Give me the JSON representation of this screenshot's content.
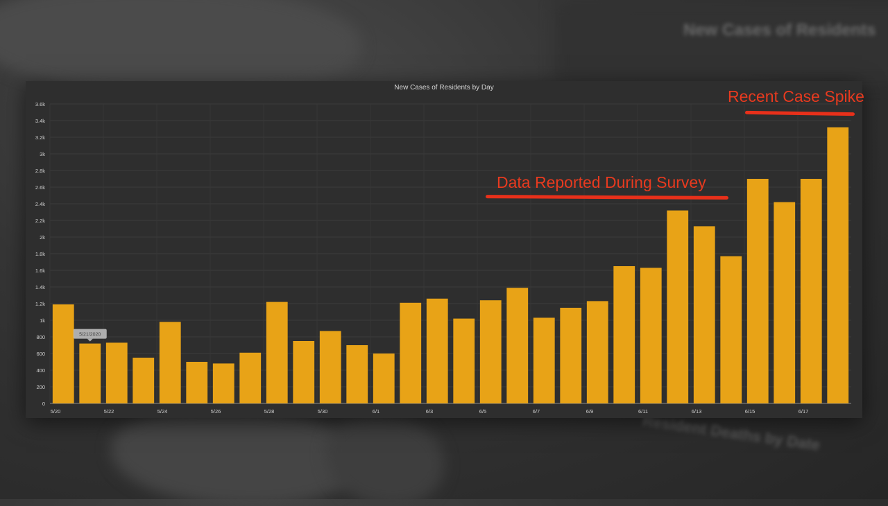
{
  "chart_data": {
    "type": "bar",
    "title": "New Cases of Residents by Day",
    "xlabel": "",
    "ylabel": "",
    "ylim": [
      0,
      3600
    ],
    "yticks": [
      0,
      200,
      400,
      600,
      800,
      1000,
      1200,
      1400,
      1600,
      1800,
      2000,
      2200,
      2400,
      2600,
      2800,
      3000,
      3200,
      3400,
      3600
    ],
    "ytick_labels": [
      "0",
      "200",
      "400",
      "600",
      "800",
      "1k",
      "1.2k",
      "1.4k",
      "1.6k",
      "1.8k",
      "2k",
      "2.2k",
      "2.4k",
      "2.6k",
      "2.8k",
      "3k",
      "3.2k",
      "3.4k",
      "3.6k"
    ],
    "categories": [
      "5/20",
      "5/21",
      "5/22",
      "5/23",
      "5/24",
      "5/25",
      "5/26",
      "5/27",
      "5/28",
      "5/29",
      "5/30",
      "5/31",
      "6/1",
      "6/2",
      "6/3",
      "6/4",
      "6/5",
      "6/6",
      "6/7",
      "6/8",
      "6/9",
      "6/10",
      "6/11",
      "6/12",
      "6/13",
      "6/14",
      "6/15",
      "6/16",
      "6/17",
      "6/18"
    ],
    "xtick_labels": [
      "5/20",
      "",
      "5/22",
      "",
      "5/24",
      "",
      "5/26",
      "",
      "5/28",
      "",
      "5/30",
      "",
      "6/1",
      "",
      "6/3",
      "",
      "6/5",
      "",
      "6/7",
      "",
      "6/9",
      "",
      "6/11",
      "",
      "6/13",
      "",
      "6/15",
      "",
      "6/17",
      ""
    ],
    "values": [
      1190,
      720,
      730,
      550,
      980,
      500,
      480,
      610,
      1220,
      750,
      870,
      700,
      600,
      1210,
      1260,
      1020,
      1240,
      1390,
      1030,
      1150,
      1230,
      1650,
      1630,
      2320,
      2130,
      1770,
      2700,
      2420,
      2700,
      3320
    ],
    "bar_color": "#e8a317",
    "grid": true,
    "tooltip": {
      "category_index": 1,
      "text": "5/21/2020"
    }
  },
  "annotations": {
    "survey": {
      "label": "Data Reported During Survey",
      "color": "#e83a1f"
    },
    "spike": {
      "label": "Recent Case Spike",
      "color": "#e83a1f"
    }
  },
  "background": {
    "blurred_title": "New Cases of Residents",
    "blurred_subtitle": "Resident Deaths by Date"
  }
}
